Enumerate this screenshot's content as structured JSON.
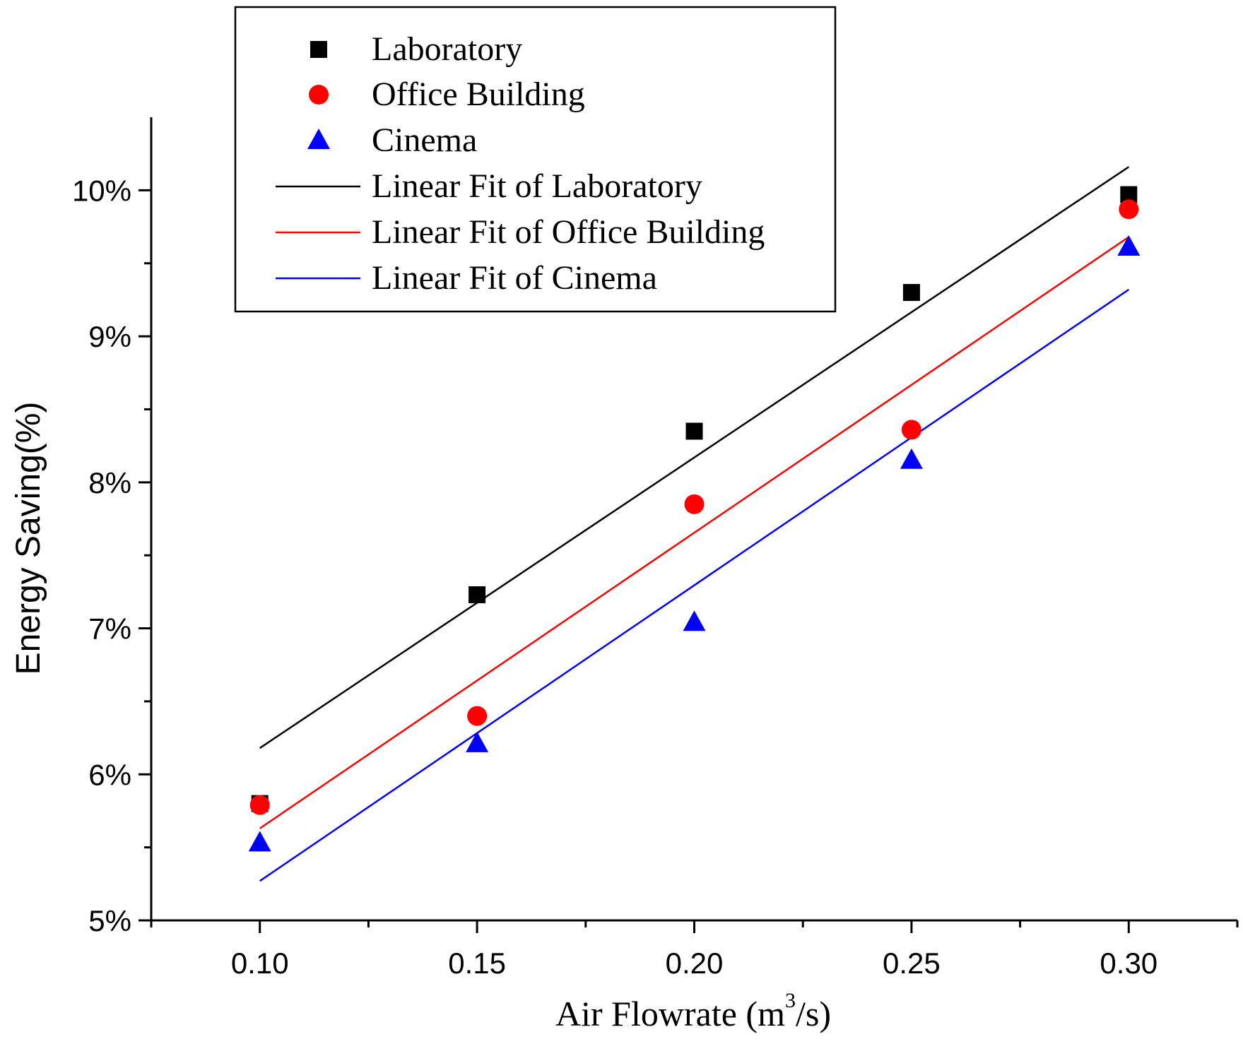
{
  "chart_data": {
    "type": "scatter",
    "title": "",
    "xlabel": "Air Flowrate (m",
    "xlabel_sup": "3",
    "xlabel_suffix": "/s)",
    "ylabel": "Energy Saving(%)",
    "xlim": [
      0.075,
      0.325
    ],
    "ylim": [
      5,
      10.5
    ],
    "x_ticks": [
      0.1,
      0.15,
      0.2,
      0.25,
      0.3
    ],
    "x_tick_labels": [
      "0.10",
      "0.15",
      "0.20",
      "0.25",
      "0.30"
    ],
    "y_ticks": [
      5,
      6,
      7,
      8,
      9,
      10
    ],
    "y_tick_labels": [
      "5%",
      "6%",
      "7%",
      "8%",
      "9%",
      "10%"
    ],
    "grid": false,
    "legend_position": "top-left",
    "series": [
      {
        "name": "Laboratory",
        "marker": "square",
        "color": "#000000",
        "x": [
          0.1,
          0.15,
          0.2,
          0.25,
          0.3
        ],
        "y": [
          5.8,
          7.23,
          8.35,
          9.3,
          9.97
        ]
      },
      {
        "name": "Office Building",
        "marker": "circle",
        "color": "#ff0000",
        "x": [
          0.1,
          0.15,
          0.2,
          0.25,
          0.3
        ],
        "y": [
          5.79,
          6.4,
          7.85,
          8.36,
          9.87
        ]
      },
      {
        "name": "Cinema",
        "marker": "triangle",
        "color": "#0000ff",
        "x": [
          0.1,
          0.15,
          0.2,
          0.25,
          0.3
        ],
        "y": [
          5.53,
          6.21,
          7.04,
          8.15,
          9.61
        ]
      }
    ],
    "fits": [
      {
        "name": "Linear Fit of Laboratory",
        "color": "#000000",
        "x": [
          0.1,
          0.3
        ],
        "y": [
          6.18,
          10.16
        ]
      },
      {
        "name": "Linear Fit of Office Building",
        "color": "#ff0000",
        "x": [
          0.1,
          0.3
        ],
        "y": [
          5.63,
          9.68
        ]
      },
      {
        "name": "Linear Fit of Cinema",
        "color": "#0000ff",
        "x": [
          0.1,
          0.3
        ],
        "y": [
          5.27,
          9.32
        ]
      }
    ]
  }
}
